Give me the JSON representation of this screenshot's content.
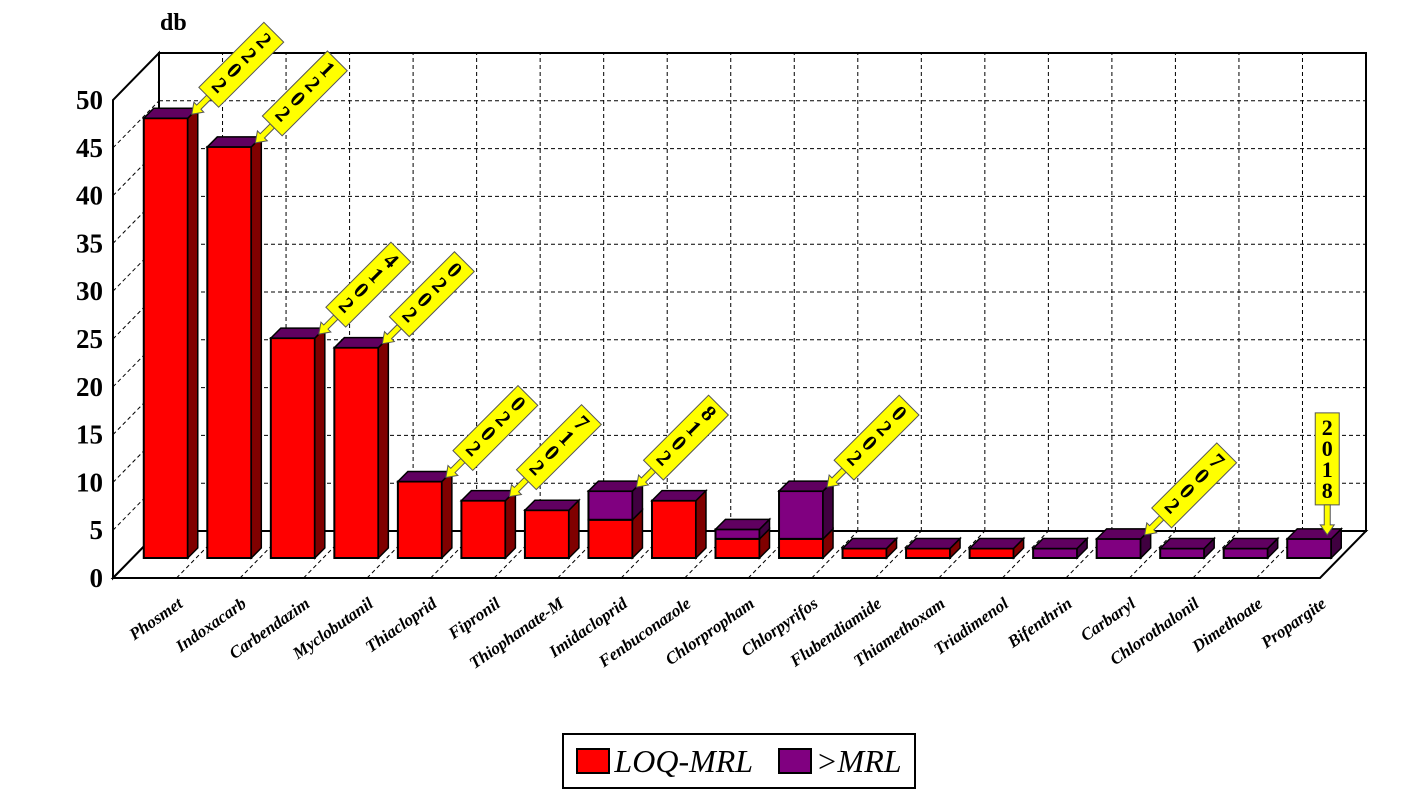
{
  "chart_data": {
    "type": "bar",
    "stacked": true,
    "three_d": true,
    "ylabel": "db",
    "ylim": [
      0,
      50
    ],
    "yticks": [
      0,
      5,
      10,
      15,
      20,
      25,
      30,
      35,
      40,
      45,
      50
    ],
    "grid": true,
    "legend_position": "bottom",
    "categories": [
      "Phosmet",
      "Indoxacarb",
      "Carbendazim",
      "Myclobutanil",
      "Thiacloprid",
      "Fipronil",
      "Thiophanate-M",
      "Imidacloprid",
      "Fenbuconazole",
      "Chlorpropham",
      "Chlorpyrifos",
      "Flubendiamide",
      "Thiamethoxam",
      "Triadimenol",
      "Bifenthrin",
      "Carbaryl",
      "Chlorothalonil",
      "Dimethoate",
      "Propargite"
    ],
    "series": [
      {
        "name": "LOQ-MRL",
        "color": "#ff0000",
        "side_color": "#800000",
        "values": [
          46,
          43,
          23,
          22,
          8,
          6,
          5,
          4,
          6,
          2,
          2,
          1,
          1,
          1,
          0,
          0,
          0,
          0,
          0
        ]
      },
      {
        "name": ">MRL",
        "color": "#800080",
        "side_color": "#400040",
        "values": [
          0,
          0,
          0,
          0,
          0,
          0,
          0,
          3,
          0,
          1,
          5,
          0,
          0,
          0,
          1,
          2,
          1,
          1,
          2
        ]
      }
    ],
    "annotations": [
      {
        "category": "Phosmet",
        "text": "2022"
      },
      {
        "category": "Indoxacarb",
        "text": "2021"
      },
      {
        "category": "Carbendazim",
        "text": "2014"
      },
      {
        "category": "Myclobutanil",
        "text": "2020"
      },
      {
        "category": "Thiacloprid",
        "text": "2020"
      },
      {
        "category": "Fipronil",
        "text": "2017"
      },
      {
        "category": "Imidacloprid",
        "text": "2018"
      },
      {
        "category": "Chlorpyrifos",
        "text": "2020"
      },
      {
        "category": "Carbaryl",
        "text": "2007"
      },
      {
        "category": "Propargite",
        "text": "2018",
        "vertical": true
      }
    ]
  },
  "legend": {
    "items": [
      "LOQ-MRL",
      ">MRL"
    ]
  }
}
